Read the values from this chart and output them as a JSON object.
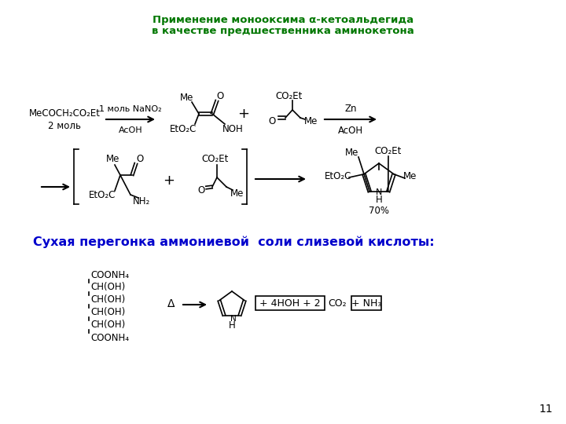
{
  "title_line1": "Применение монооксима α-кетоальдегида",
  "title_line2": "в качестве предшественника аминокетона",
  "title_color": "#007700",
  "subtitle": "Сухая перегонка аммониевой  соли слизевой кислоты:",
  "subtitle_color": "#0000CC",
  "page_number": "11",
  "bg_color": "#FFFFFF"
}
